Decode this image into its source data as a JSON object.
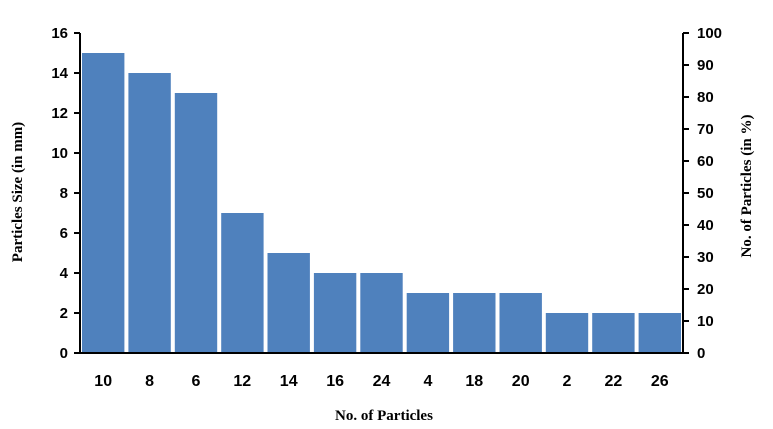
{
  "chart_data": {
    "type": "bar",
    "categories": [
      "10",
      "8",
      "6",
      "12",
      "14",
      "16",
      "24",
      "4",
      "18",
      "20",
      "2",
      "22",
      "26"
    ],
    "values": [
      15,
      14,
      13,
      7,
      5,
      4,
      4,
      3,
      3,
      3,
      2,
      2,
      2
    ],
    "xlabel": "No. of Particles",
    "ylabel": "Particles Size  (in mm)",
    "y2label": "No. of Particles (in %)",
    "ylim": [
      0,
      16
    ],
    "y2lim": [
      0,
      100
    ],
    "yticks": [
      "0",
      "2",
      "4",
      "6",
      "8",
      "10",
      "12",
      "14",
      "16"
    ],
    "y2ticks": [
      "0",
      "10",
      "20",
      "30",
      "40",
      "50",
      "60",
      "70",
      "80",
      "90",
      "100"
    ],
    "bar_color": "#4f81bd",
    "grid": false,
    "legend": "none"
  }
}
